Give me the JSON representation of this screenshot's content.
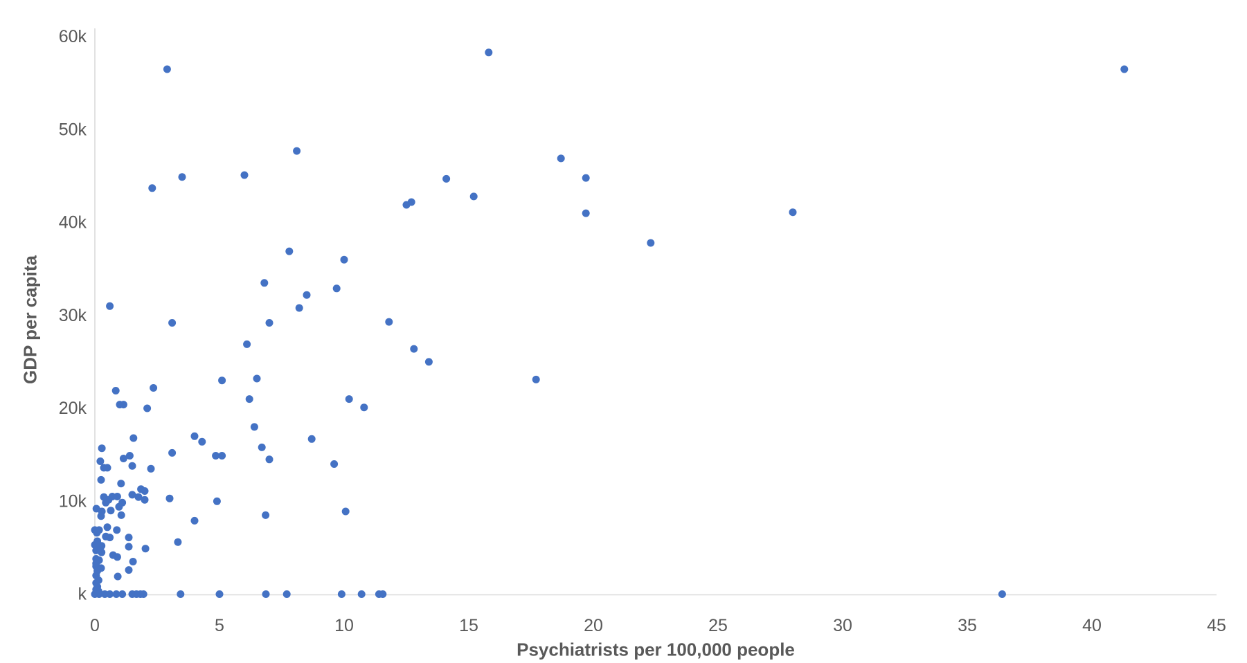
{
  "page": {
    "background": "#ffffff"
  },
  "chart_data": {
    "type": "scatter",
    "title": "",
    "xlabel": "Psychiatrists per 100,000 people",
    "ylabel": "GDP per capita",
    "xlim": [
      0,
      45
    ],
    "ylim": [
      0,
      60000
    ],
    "grid": false,
    "legend": "none",
    "marker": {
      "shape": "circle",
      "radius": 5.5,
      "color": "#4472C4"
    },
    "axis_line_color": "#D9D9D9",
    "tick_label_color": "#595959",
    "x_ticks": [
      {
        "value": 0,
        "label": "0"
      },
      {
        "value": 5,
        "label": "5"
      },
      {
        "value": 10,
        "label": "10"
      },
      {
        "value": 15,
        "label": "15"
      },
      {
        "value": 20,
        "label": "20"
      },
      {
        "value": 25,
        "label": "25"
      },
      {
        "value": 30,
        "label": "30"
      },
      {
        "value": 35,
        "label": "35"
      },
      {
        "value": 40,
        "label": "40"
      },
      {
        "value": 45,
        "label": "45"
      }
    ],
    "y_ticks": [
      {
        "value": 0,
        "label": "k"
      },
      {
        "value": 10000,
        "label": "10k"
      },
      {
        "value": 20000,
        "label": "20k"
      },
      {
        "value": 30000,
        "label": "30k"
      },
      {
        "value": 40000,
        "label": "40k"
      },
      {
        "value": 50000,
        "label": "50k"
      },
      {
        "value": 60000,
        "label": "60k"
      }
    ],
    "points": [
      [
        2.9,
        56500
      ],
      [
        15.8,
        58300
      ],
      [
        41.3,
        56500
      ],
      [
        8.1,
        47700
      ],
      [
        18.7,
        46900
      ],
      [
        3.5,
        44900
      ],
      [
        6.0,
        45100
      ],
      [
        14.1,
        44700
      ],
      [
        19.7,
        44800
      ],
      [
        2.3,
        43700
      ],
      [
        15.2,
        42800
      ],
      [
        12.5,
        41900
      ],
      [
        12.7,
        42200
      ],
      [
        19.7,
        41000
      ],
      [
        28.0,
        41100
      ],
      [
        22.3,
        37800
      ],
      [
        7.8,
        36900
      ],
      [
        10.0,
        36000
      ],
      [
        6.8,
        33500
      ],
      [
        9.7,
        32900
      ],
      [
        8.5,
        32200
      ],
      [
        8.2,
        30800
      ],
      [
        0.6,
        31000
      ],
      [
        3.1,
        29200
      ],
      [
        7.0,
        29200
      ],
      [
        11.8,
        29300
      ],
      [
        12.8,
        26400
      ],
      [
        13.4,
        25000
      ],
      [
        17.7,
        23100
      ],
      [
        6.1,
        26900
      ],
      [
        5.1,
        23000
      ],
      [
        6.5,
        23200
      ],
      [
        0.84,
        21900
      ],
      [
        2.35,
        22200
      ],
      [
        1.0,
        20400
      ],
      [
        1.15,
        20400
      ],
      [
        2.1,
        20000
      ],
      [
        6.2,
        21000
      ],
      [
        10.2,
        21000
      ],
      [
        10.8,
        20100
      ],
      [
        6.4,
        18000
      ],
      [
        4.0,
        17000
      ],
      [
        4.3,
        16400
      ],
      [
        1.55,
        16800
      ],
      [
        0.28,
        15700
      ],
      [
        3.1,
        15200
      ],
      [
        4.85,
        14900
      ],
      [
        5.1,
        14900
      ],
      [
        6.7,
        15800
      ],
      [
        7.0,
        14500
      ],
      [
        8.7,
        16700
      ],
      [
        9.6,
        14000
      ],
      [
        0.22,
        14300
      ],
      [
        1.15,
        14600
      ],
      [
        1.4,
        14900
      ],
      [
        0.36,
        13600
      ],
      [
        0.5,
        13600
      ],
      [
        1.5,
        13800
      ],
      [
        2.25,
        13500
      ],
      [
        0.25,
        12300
      ],
      [
        1.05,
        11900
      ],
      [
        1.85,
        11300
      ],
      [
        2.0,
        11100
      ],
      [
        0.7,
        10500
      ],
      [
        0.9,
        10500
      ],
      [
        0.36,
        10450
      ],
      [
        0.55,
        10150
      ],
      [
        0.44,
        9850
      ],
      [
        1.1,
        9850
      ],
      [
        1.5,
        10700
      ],
      [
        1.75,
        10450
      ],
      [
        2.0,
        10150
      ],
      [
        3.0,
        10300
      ],
      [
        4.9,
        10000
      ],
      [
        0.06,
        9200
      ],
      [
        0.28,
        8900
      ],
      [
        0.64,
        9000
      ],
      [
        0.97,
        9400
      ],
      [
        1.06,
        8500
      ],
      [
        0.25,
        8400
      ],
      [
        4.0,
        7900
      ],
      [
        6.85,
        8500
      ],
      [
        10.06,
        8900
      ],
      [
        0.0,
        6900
      ],
      [
        0.17,
        6900
      ],
      [
        0.08,
        6600
      ],
      [
        0.5,
        7200
      ],
      [
        0.88,
        6900
      ],
      [
        0.44,
        6200
      ],
      [
        0.6,
        6100
      ],
      [
        1.36,
        6100
      ],
      [
        0.1,
        5700
      ],
      [
        0.0,
        5300
      ],
      [
        0.27,
        5200
      ],
      [
        1.36,
        5100
      ],
      [
        2.03,
        4900
      ],
      [
        3.33,
        5600
      ],
      [
        0.05,
        4700
      ],
      [
        0.27,
        4500
      ],
      [
        0.73,
        4200
      ],
      [
        0.9,
        4000
      ],
      [
        0.05,
        3800
      ],
      [
        0.17,
        3650
      ],
      [
        1.53,
        3500
      ],
      [
        0.05,
        3000
      ],
      [
        0.25,
        2800
      ],
      [
        0.92,
        1900
      ],
      [
        1.36,
        2600
      ],
      [
        0.05,
        3300
      ],
      [
        0.1,
        2500
      ],
      [
        0.05,
        2000
      ],
      [
        0.15,
        1500
      ],
      [
        0.05,
        1200
      ],
      [
        0.1,
        800
      ],
      [
        0.05,
        500
      ],
      [
        0.15,
        300
      ],
      [
        0.0,
        0
      ],
      [
        0.17,
        0
      ],
      [
        0.4,
        0
      ],
      [
        0.6,
        0
      ],
      [
        0.86,
        0
      ],
      [
        1.1,
        0
      ],
      [
        1.5,
        0
      ],
      [
        1.67,
        0
      ],
      [
        1.83,
        0
      ],
      [
        1.95,
        0
      ],
      [
        3.44,
        0
      ],
      [
        5.0,
        0
      ],
      [
        6.86,
        0
      ],
      [
        7.7,
        0
      ],
      [
        9.9,
        0
      ],
      [
        10.7,
        0
      ],
      [
        11.4,
        0
      ],
      [
        11.55,
        0
      ],
      [
        36.4,
        0
      ]
    ]
  }
}
